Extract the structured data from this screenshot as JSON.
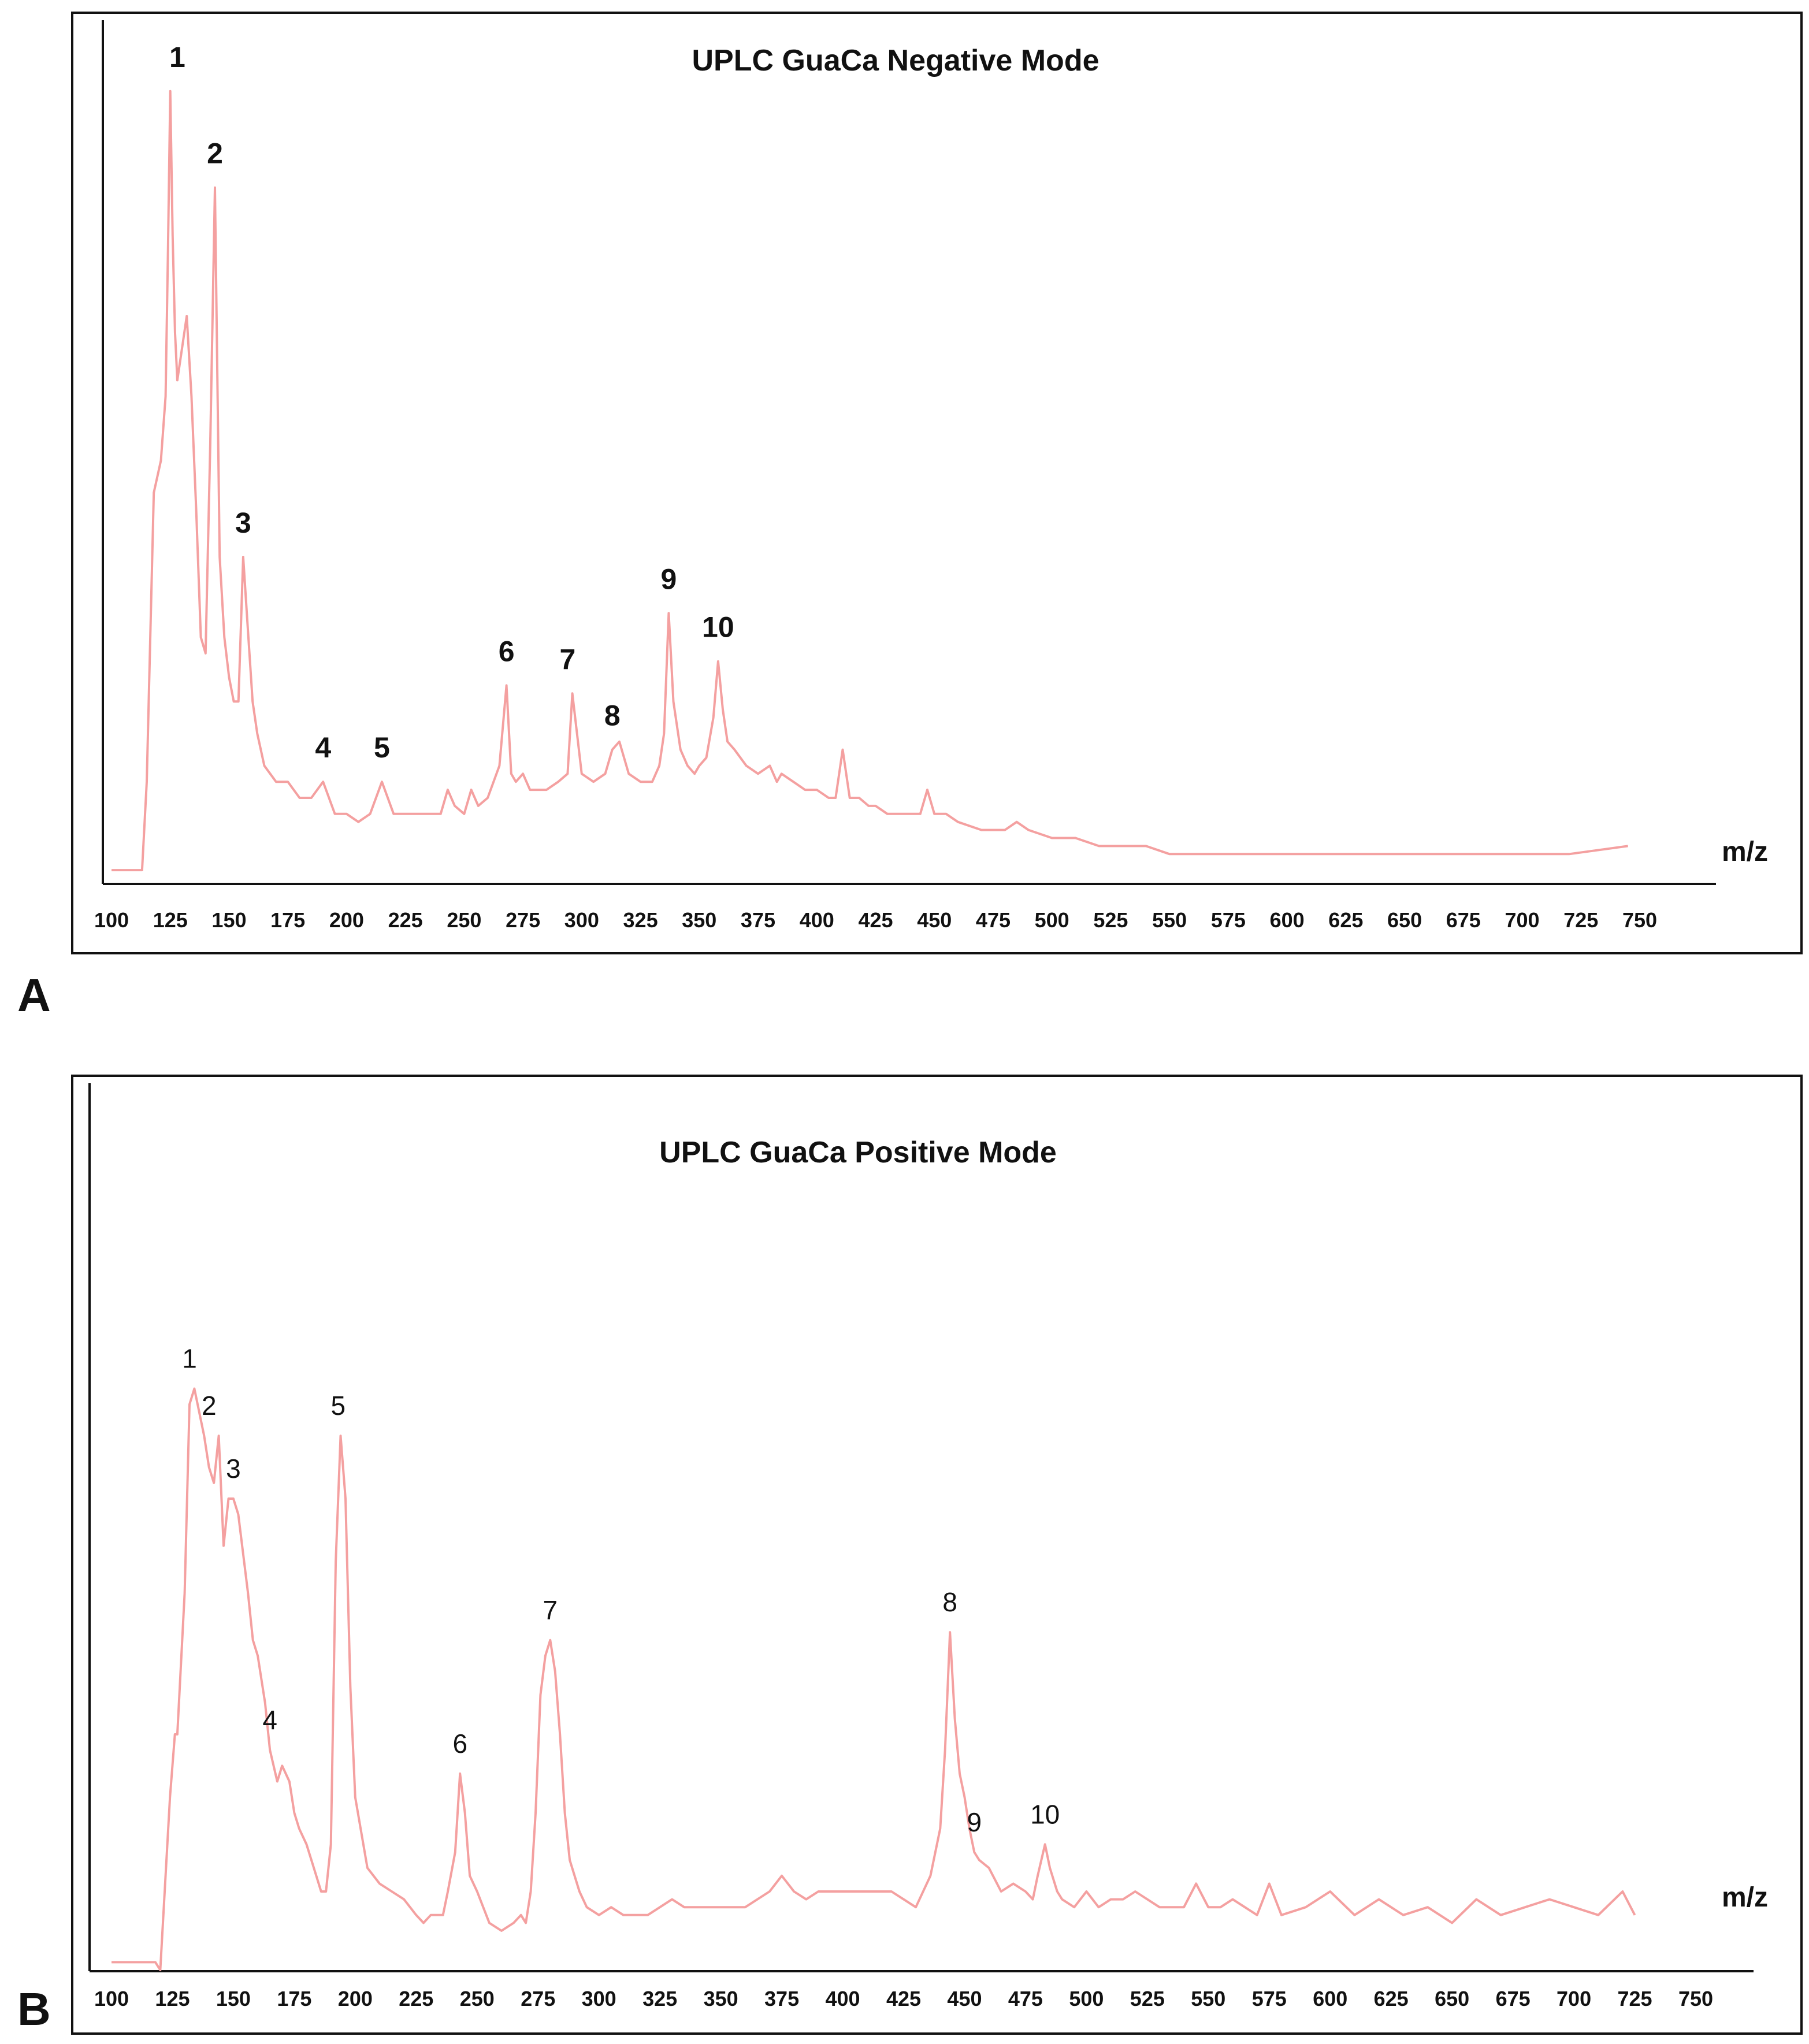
{
  "chart_data": [
    {
      "type": "line",
      "panel": "A",
      "title": "UPLC GuaCa Negative Mode",
      "xlabel": "m/z",
      "ylabel": "",
      "xlim": [
        100,
        750
      ],
      "ylim": [
        0,
        100
      ],
      "grid": false,
      "line_color": "#f4a0a0",
      "x_ticks": [
        100,
        125,
        150,
        175,
        200,
        225,
        250,
        275,
        300,
        325,
        350,
        375,
        400,
        425,
        450,
        475,
        500,
        525,
        550,
        575,
        600,
        625,
        650,
        675,
        700,
        725,
        750
      ],
      "series": [
        {
          "x": [
            100,
            113,
            115,
            118,
            121,
            123,
            124,
            125,
            126,
            127,
            128,
            130,
            132,
            134,
            136,
            138,
            140,
            142,
            144,
            146,
            148,
            150,
            152,
            154,
            156,
            158,
            160,
            162,
            165,
            170,
            175,
            180,
            185,
            190,
            195,
            200,
            205,
            210,
            215,
            220,
            225,
            230,
            235,
            240,
            243,
            246,
            250,
            253,
            256,
            260,
            265,
            268,
            270,
            272,
            275,
            278,
            280,
            285,
            290,
            294,
            296,
            300,
            305,
            310,
            313,
            316,
            320,
            325,
            330,
            333,
            335,
            337,
            339,
            342,
            345,
            348,
            350,
            353,
            356,
            358,
            360,
            362,
            365,
            370,
            375,
            380,
            383,
            385,
            390,
            395,
            400,
            405,
            408,
            411,
            414,
            418,
            422,
            425,
            430,
            435,
            440,
            444,
            447,
            450,
            455,
            460,
            470,
            480,
            485,
            490,
            500,
            510,
            520,
            530,
            540,
            550,
            560,
            570,
            580,
            600,
            620,
            640,
            660,
            680,
            700,
            720,
            745
          ],
          "y": [
            1,
            1,
            12,
            48,
            52,
            60,
            78,
            98,
            80,
            68,
            62,
            66,
            70,
            60,
            46,
            30,
            28,
            54,
            86,
            40,
            30,
            25,
            22,
            22,
            40,
            31,
            22,
            18,
            14,
            12,
            12,
            10,
            10,
            12,
            8,
            8,
            7,
            8,
            12,
            8,
            8,
            8,
            8,
            8,
            11,
            9,
            8,
            11,
            9,
            10,
            14,
            24,
            13,
            12,
            13,
            11,
            11,
            11,
            12,
            13,
            23,
            13,
            12,
            13,
            16,
            17,
            13,
            12,
            12,
            14,
            18,
            33,
            22,
            16,
            14,
            13,
            14,
            15,
            20,
            27,
            21,
            17,
            16,
            14,
            13,
            14,
            12,
            13,
            12,
            11,
            11,
            10,
            10,
            16,
            10,
            10,
            9,
            9,
            8,
            8,
            8,
            8,
            11,
            8,
            8,
            7,
            6,
            6,
            7,
            6,
            5,
            5,
            4,
            4,
            4,
            3,
            3,
            3,
            3,
            3,
            3,
            3,
            3,
            3,
            3,
            3,
            4
          ]
        }
      ],
      "peak_labels": [
        {
          "label": "1",
          "x": 128,
          "y": 98
        },
        {
          "label": "2",
          "x": 144,
          "y": 86
        },
        {
          "label": "3",
          "x": 156,
          "y": 40
        },
        {
          "label": "4",
          "x": 190,
          "y": 12
        },
        {
          "label": "5",
          "x": 215,
          "y": 12
        },
        {
          "label": "6",
          "x": 268,
          "y": 24
        },
        {
          "label": "7",
          "x": 294,
          "y": 23
        },
        {
          "label": "8",
          "x": 313,
          "y": 16
        },
        {
          "label": "9",
          "x": 337,
          "y": 33
        },
        {
          "label": "10",
          "x": 358,
          "y": 27
        }
      ]
    },
    {
      "type": "line",
      "panel": "B",
      "title": "UPLC GuaCa Positive Mode",
      "xlabel": "m/z",
      "ylabel": "",
      "xlim": [
        100,
        750
      ],
      "ylim": [
        0,
        100
      ],
      "grid": false,
      "line_color": "#f4a0a0",
      "x_ticks": [
        100,
        125,
        150,
        175,
        200,
        225,
        250,
        275,
        300,
        325,
        350,
        375,
        400,
        425,
        450,
        475,
        500,
        525,
        550,
        575,
        600,
        625,
        650,
        675,
        700,
        725,
        750
      ],
      "series": [
        {
          "x": [
            100,
            118,
            120,
            124,
            126,
            127,
            130,
            132,
            134,
            138,
            140,
            142,
            144,
            146,
            148,
            150,
            152,
            156,
            158,
            160,
            163,
            165,
            168,
            170,
            173,
            175,
            177,
            180,
            184,
            186,
            188,
            190,
            192,
            194,
            196,
            198,
            200,
            205,
            210,
            215,
            220,
            225,
            228,
            231,
            234,
            236,
            238,
            241,
            243,
            245,
            247,
            250,
            255,
            260,
            265,
            268,
            270,
            272,
            274,
            276,
            278,
            280,
            282,
            284,
            286,
            288,
            292,
            295,
            300,
            305,
            310,
            320,
            330,
            335,
            340,
            350,
            360,
            370,
            375,
            380,
            385,
            390,
            400,
            410,
            420,
            425,
            430,
            436,
            440,
            442,
            444,
            446,
            448,
            450,
            452,
            454,
            456,
            460,
            465,
            470,
            475,
            478,
            480,
            483,
            485,
            488,
            490,
            495,
            500,
            505,
            510,
            515,
            520,
            530,
            540,
            545,
            550,
            555,
            560,
            570,
            575,
            580,
            590,
            600,
            610,
            620,
            630,
            640,
            650,
            660,
            670,
            680,
            690,
            700,
            710,
            720,
            725
          ],
          "y": [
            1,
            1,
            0,
            22,
            30,
            30,
            48,
            72,
            74,
            68,
            64,
            62,
            68,
            54,
            60,
            60,
            58,
            48,
            42,
            40,
            34,
            28,
            24,
            26,
            24,
            20,
            18,
            16,
            12,
            10,
            10,
            16,
            52,
            68,
            60,
            36,
            22,
            13,
            11,
            10,
            9,
            7,
            6,
            7,
            7,
            7,
            10,
            15,
            25,
            20,
            12,
            10,
            6,
            5,
            6,
            7,
            6,
            10,
            20,
            35,
            40,
            42,
            38,
            30,
            20,
            14,
            10,
            8,
            7,
            8,
            7,
            7,
            9,
            8,
            8,
            8,
            8,
            10,
            12,
            10,
            9,
            10,
            10,
            10,
            10,
            9,
            8,
            12,
            18,
            28,
            43,
            32,
            25,
            22,
            18,
            15,
            14,
            13,
            10,
            11,
            10,
            9,
            12,
            16,
            13,
            10,
            9,
            8,
            10,
            8,
            9,
            9,
            10,
            8,
            8,
            11,
            8,
            8,
            9,
            7,
            11,
            7,
            8,
            10,
            7,
            9,
            7,
            8,
            6,
            9,
            7,
            8,
            9,
            8,
            7,
            10,
            7
          ]
        }
      ],
      "peak_labels": [
        {
          "label": "1",
          "x": 132,
          "y": 74
        },
        {
          "label": "2",
          "x": 140,
          "y": 68
        },
        {
          "label": "3",
          "x": 150,
          "y": 60
        },
        {
          "label": "4",
          "x": 165,
          "y": 28
        },
        {
          "label": "5",
          "x": 193,
          "y": 68
        },
        {
          "label": "6",
          "x": 243,
          "y": 25
        },
        {
          "label": "7",
          "x": 280,
          "y": 42
        },
        {
          "label": "8",
          "x": 444,
          "y": 43
        },
        {
          "label": "9",
          "x": 454,
          "y": 15
        },
        {
          "label": "10",
          "x": 483,
          "y": 16
        }
      ]
    }
  ]
}
